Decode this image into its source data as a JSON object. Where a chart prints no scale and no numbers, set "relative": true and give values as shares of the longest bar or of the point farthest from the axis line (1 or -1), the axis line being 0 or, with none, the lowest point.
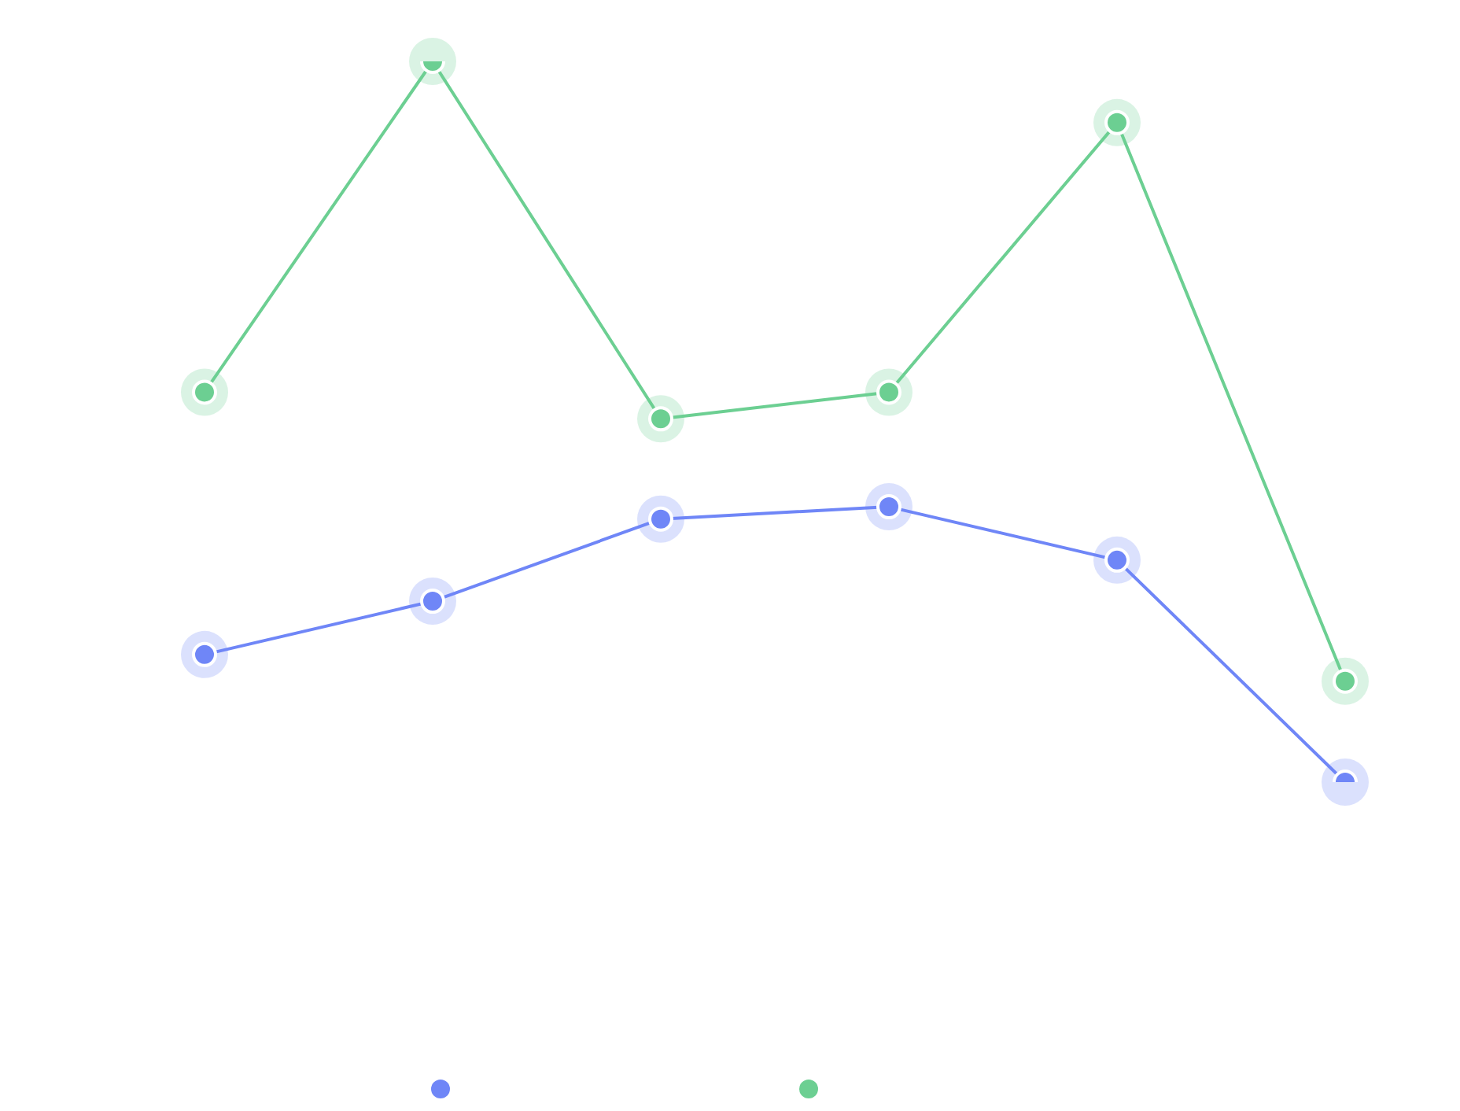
{
  "chart_data": {
    "type": "line",
    "relative": true,
    "categories": [
      null,
      null,
      null,
      null,
      null,
      null
    ],
    "marker": "circle",
    "line_style": "solid",
    "series": [
      {
        "color": "#6f86f7",
        "values": [
          0.177,
          0.251,
          0.365,
          0.382,
          0.308,
          0
        ]
      },
      {
        "color": "#6ccf92",
        "values": [
          0.541,
          1,
          0.504,
          0.541,
          0.915,
          0.14
        ]
      }
    ]
  }
}
